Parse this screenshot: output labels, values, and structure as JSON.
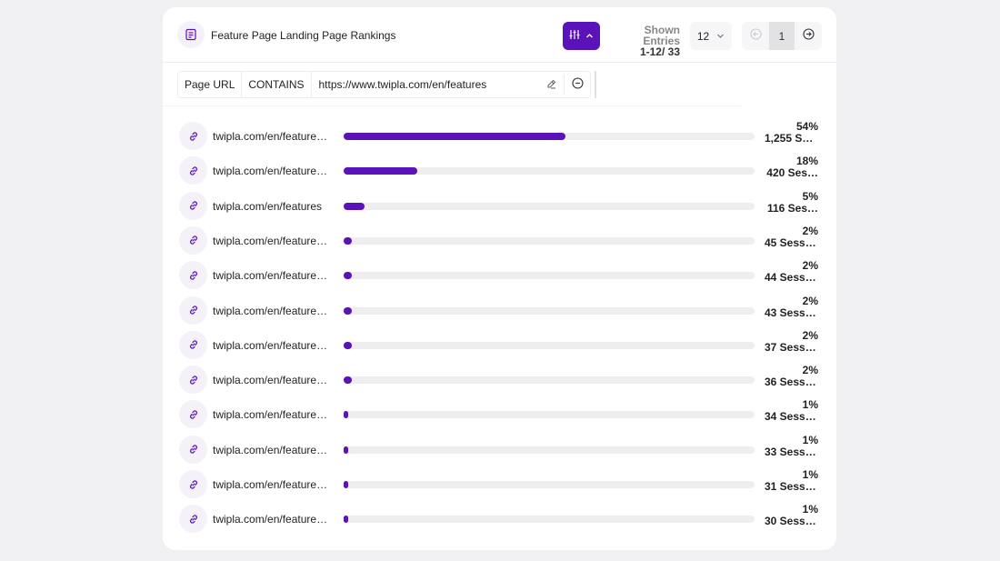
{
  "header": {
    "title": "Feature Page Landing Page Rankings",
    "shown_label": "Shown Entries",
    "shown_value": "1-12/ 33",
    "per_page": "12",
    "current_page": "1"
  },
  "filter": {
    "field": "Page URL",
    "operator": "CONTAINS",
    "value": "https://www.twipla.com/en/features"
  },
  "colors": {
    "accent": "#5b12b8",
    "track": "#eeeef0",
    "icon_bg": "#f4f2f8"
  },
  "rows": [
    {
      "url": "twipla.com/en/features/…",
      "percent": "54%",
      "sessions": "1,255 Ses…",
      "share": 0.54
    },
    {
      "url": "twipla.com/en/features/…",
      "percent": "18%",
      "sessions": "420 Ses…",
      "share": 0.18
    },
    {
      "url": "twipla.com/en/features",
      "percent": "5%",
      "sessions": "116 Ses…",
      "share": 0.05
    },
    {
      "url": "twipla.com/en/features/…",
      "percent": "2%",
      "sessions": "45 Sessi…",
      "share": 0.02
    },
    {
      "url": "twipla.com/en/features/…",
      "percent": "2%",
      "sessions": "44 Sessi…",
      "share": 0.02
    },
    {
      "url": "twipla.com/en/features/…",
      "percent": "2%",
      "sessions": "43 Sessi…",
      "share": 0.02
    },
    {
      "url": "twipla.com/en/features/…",
      "percent": "2%",
      "sessions": "37 Sessi…",
      "share": 0.02
    },
    {
      "url": "twipla.com/en/features/…",
      "percent": "2%",
      "sessions": "36 Sessi…",
      "share": 0.02
    },
    {
      "url": "twipla.com/en/features/…",
      "percent": "1%",
      "sessions": "34 Sessi…",
      "share": 0.01
    },
    {
      "url": "twipla.com/en/features/…",
      "percent": "1%",
      "sessions": "33 Sessi…",
      "share": 0.01
    },
    {
      "url": "twipla.com/en/features/…",
      "percent": "1%",
      "sessions": "31 Sessi…",
      "share": 0.01
    },
    {
      "url": "twipla.com/en/features/…",
      "percent": "1%",
      "sessions": "30 Sessi…",
      "share": 0.01
    }
  ],
  "icons": {
    "title": "report-icon",
    "filter_toggle": "sliders-icon",
    "row": "link-icon",
    "prev": "arrow-left-circle-icon",
    "next": "arrow-right-circle-icon",
    "edit": "eraser-icon",
    "remove": "minus-circle-icon"
  }
}
